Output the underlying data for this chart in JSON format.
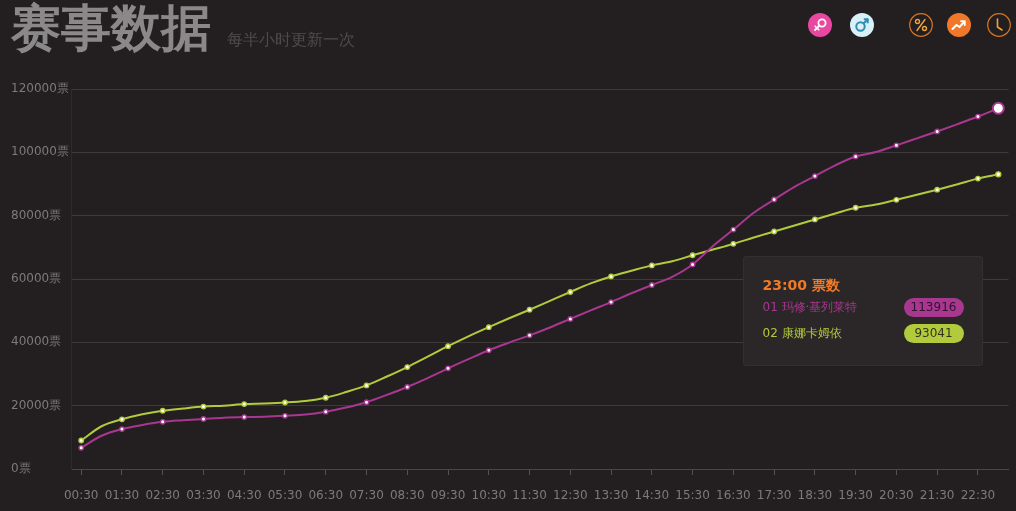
{
  "chart_data": {
    "type": "line",
    "title": "赛事数据",
    "subtitle": "每半小时更新一次",
    "categories": [
      "00:30",
      null,
      "01:30",
      null,
      "02:30",
      null,
      "03:30",
      null,
      "04:30",
      null,
      "05:30",
      null,
      "06:30",
      null,
      "07:30",
      null,
      "08:30",
      null,
      "09:30",
      null,
      "10:30",
      null,
      "11:30",
      null,
      "12:30",
      null,
      "13:30",
      null,
      "14:30",
      null,
      "15:30",
      null,
      "16:30",
      null,
      "17:30",
      null,
      "18:30",
      null,
      "19:30",
      null,
      "20:30",
      null,
      "21:30",
      null,
      "22:30",
      null
    ],
    "series": [
      {
        "name": "01 玛修·基列莱特",
        "color": "#a8378f",
        "values": [
          6700,
          10500,
          12600,
          13900,
          14900,
          15400,
          15800,
          16200,
          16400,
          16500,
          16800,
          17200,
          18100,
          19400,
          21100,
          23400,
          25900,
          28700,
          31800,
          34700,
          37500,
          39900,
          42200,
          44700,
          47400,
          50100,
          52700,
          55500,
          58100,
          60700,
          64600,
          70400,
          75600,
          80900,
          85100,
          89100,
          92500,
          95900,
          98700,
          100100,
          102200,
          104400,
          106600,
          108900,
          111300,
          113916
        ]
      },
      {
        "name": "02 康娜卡姆依",
        "color": "#b2cb3c",
        "values": [
          9000,
          13500,
          15700,
          17300,
          18400,
          19100,
          19700,
          20000,
          20500,
          20700,
          21000,
          21500,
          22500,
          24300,
          26400,
          29200,
          32200,
          35500,
          38800,
          41900,
          44800,
          47600,
          50300,
          53100,
          55900,
          58600,
          60800,
          62600,
          64300,
          65600,
          67500,
          69300,
          71100,
          73100,
          75000,
          76900,
          78800,
          80700,
          82500,
          83500,
          85000,
          86600,
          88200,
          89900,
          91700,
          93041
        ]
      }
    ],
    "ylim": [
      0,
      120000
    ],
    "yticks": [
      {
        "value": 0,
        "label": "0票"
      },
      {
        "value": 20000,
        "label": "20000票"
      },
      {
        "value": 40000,
        "label": "40000票"
      },
      {
        "value": 60000,
        "label": "60000票"
      },
      {
        "value": 80000,
        "label": "80000票"
      },
      {
        "value": 100000,
        "label": "100000票"
      },
      {
        "value": 120000,
        "label": "120000票"
      }
    ],
    "grid": "y",
    "legend": "right",
    "legend_title": "23:00 票数",
    "marker": "circle",
    "annotations": [
      "113916",
      "93041"
    ]
  }
}
